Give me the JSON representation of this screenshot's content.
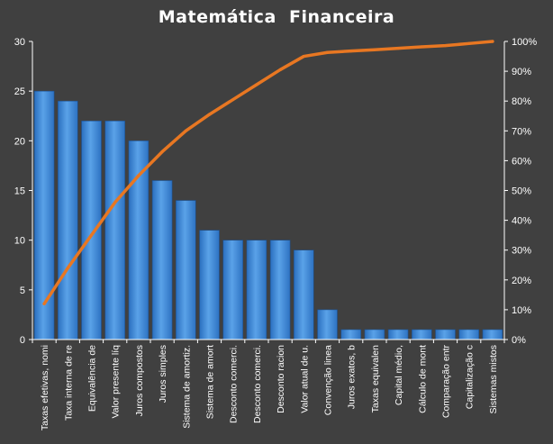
{
  "chart_data": {
    "type": "bar",
    "title": "Matemática  Financeira",
    "xlabel": "",
    "ylabel": "",
    "ylim": [
      0,
      30
    ],
    "y2lim": [
      0,
      1
    ],
    "yticks": [
      "0",
      "5",
      "10",
      "15",
      "20",
      "25",
      "30"
    ],
    "y2ticks": [
      "0%",
      "10%",
      "20%",
      "30%",
      "40%",
      "50%",
      "60%",
      "70%",
      "80%",
      "90%",
      "100%"
    ],
    "grid": false,
    "legend": "none",
    "categories": [
      "Taxas efetivas, nomi",
      "Taxa interna de re",
      "Equivalência de",
      "Valor presente líq",
      "Juros compostos",
      "Juros simples",
      "Sistema de amortiz.",
      "Sistema de amort",
      "Desconto comerci.",
      "Desconto comerci.",
      "Desconto racion",
      "Valor atual de u.",
      "Convenção linea",
      "Juros exatos, b",
      "Taxas equivalen",
      "Capital médio,",
      "Cálculo de mont",
      "Comparação entr",
      "Capitalização c",
      "Sistemas mistos"
    ],
    "series": [
      {
        "type": "bar",
        "axis": "left",
        "values": [
          25,
          24,
          22,
          22,
          20,
          16,
          14,
          11,
          10,
          10,
          10,
          9,
          3,
          1,
          1,
          1,
          1,
          1,
          1,
          1
        ]
      },
      {
        "type": "line",
        "axis": "right",
        "values": [
          0.12,
          0.24,
          0.35,
          0.46,
          0.55,
          0.63,
          0.7,
          0.755,
          0.805,
          0.855,
          0.905,
          0.95,
          0.963,
          0.968,
          0.972,
          0.977,
          0.982,
          0.986,
          0.993,
          1.0
        ]
      }
    ],
    "colors": {
      "bar": "#4a90d8",
      "line": "#e87722",
      "axis": "#ffffff",
      "text": "#ffffff",
      "background": "#404040"
    }
  }
}
